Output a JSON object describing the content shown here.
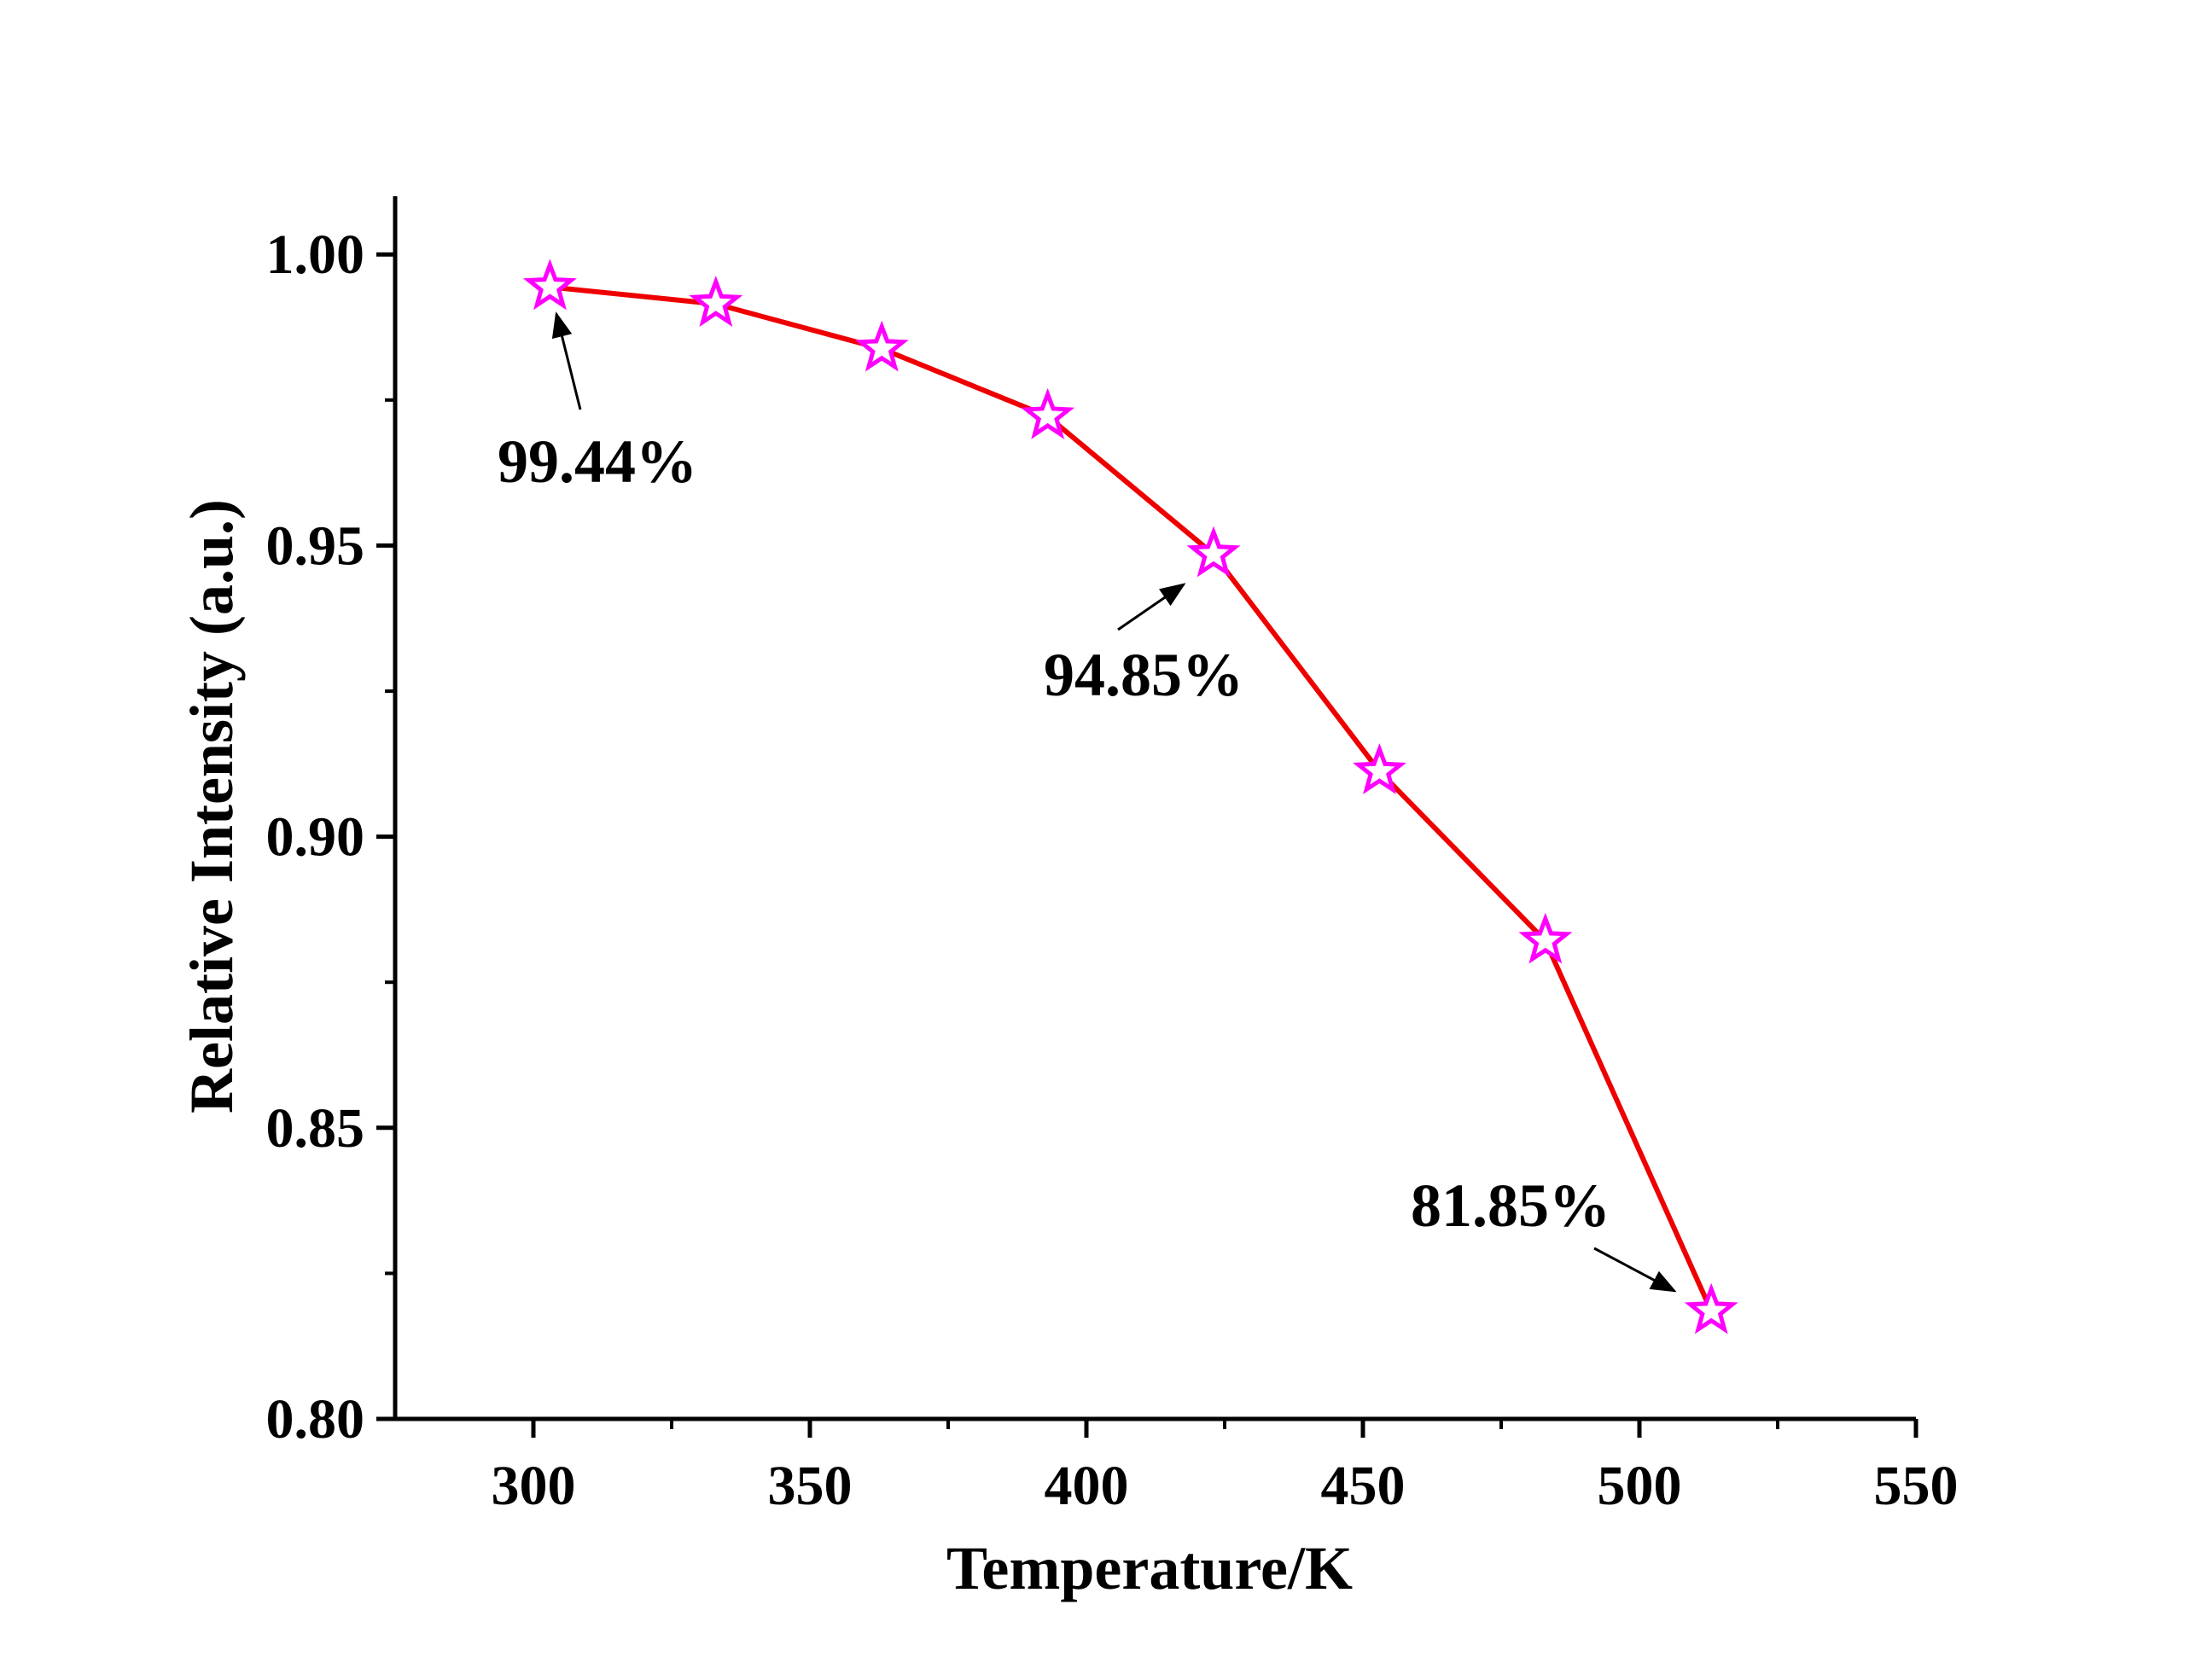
{
  "chart_data": {
    "type": "line",
    "title": "",
    "xlabel": "Temperature/K",
    "ylabel": "Relative Intensity (a.u.)",
    "xlim": [
      275,
      550
    ],
    "ylim": [
      0.8,
      1.01
    ],
    "x_ticks": [
      300,
      350,
      400,
      450,
      500,
      550
    ],
    "x_tick_labels": [
      "300",
      "350",
      "400",
      "450",
      "500",
      "550"
    ],
    "y_ticks": [
      0.8,
      0.85,
      0.9,
      0.95,
      1.0
    ],
    "y_tick_labels": [
      "0.80",
      "0.85",
      "0.90",
      "0.95",
      "1.00"
    ],
    "grid": false,
    "legend": "none",
    "series": [
      {
        "x": [
          303,
          333,
          363,
          393,
          423,
          453,
          483,
          513
        ],
        "y": [
          0.9944,
          0.9915,
          0.9838,
          0.9722,
          0.9485,
          0.9112,
          0.8821,
          0.8185
        ],
        "line_color": "#ee0000",
        "marker": "star",
        "marker_color": "#ff00ff"
      }
    ],
    "annotations": [
      {
        "text": "99.44%",
        "x": 303,
        "y": 0.9944
      },
      {
        "text": "94.85%",
        "x": 423,
        "y": 0.9485
      },
      {
        "text": "81.85%",
        "x": 513,
        "y": 0.8185
      }
    ]
  }
}
